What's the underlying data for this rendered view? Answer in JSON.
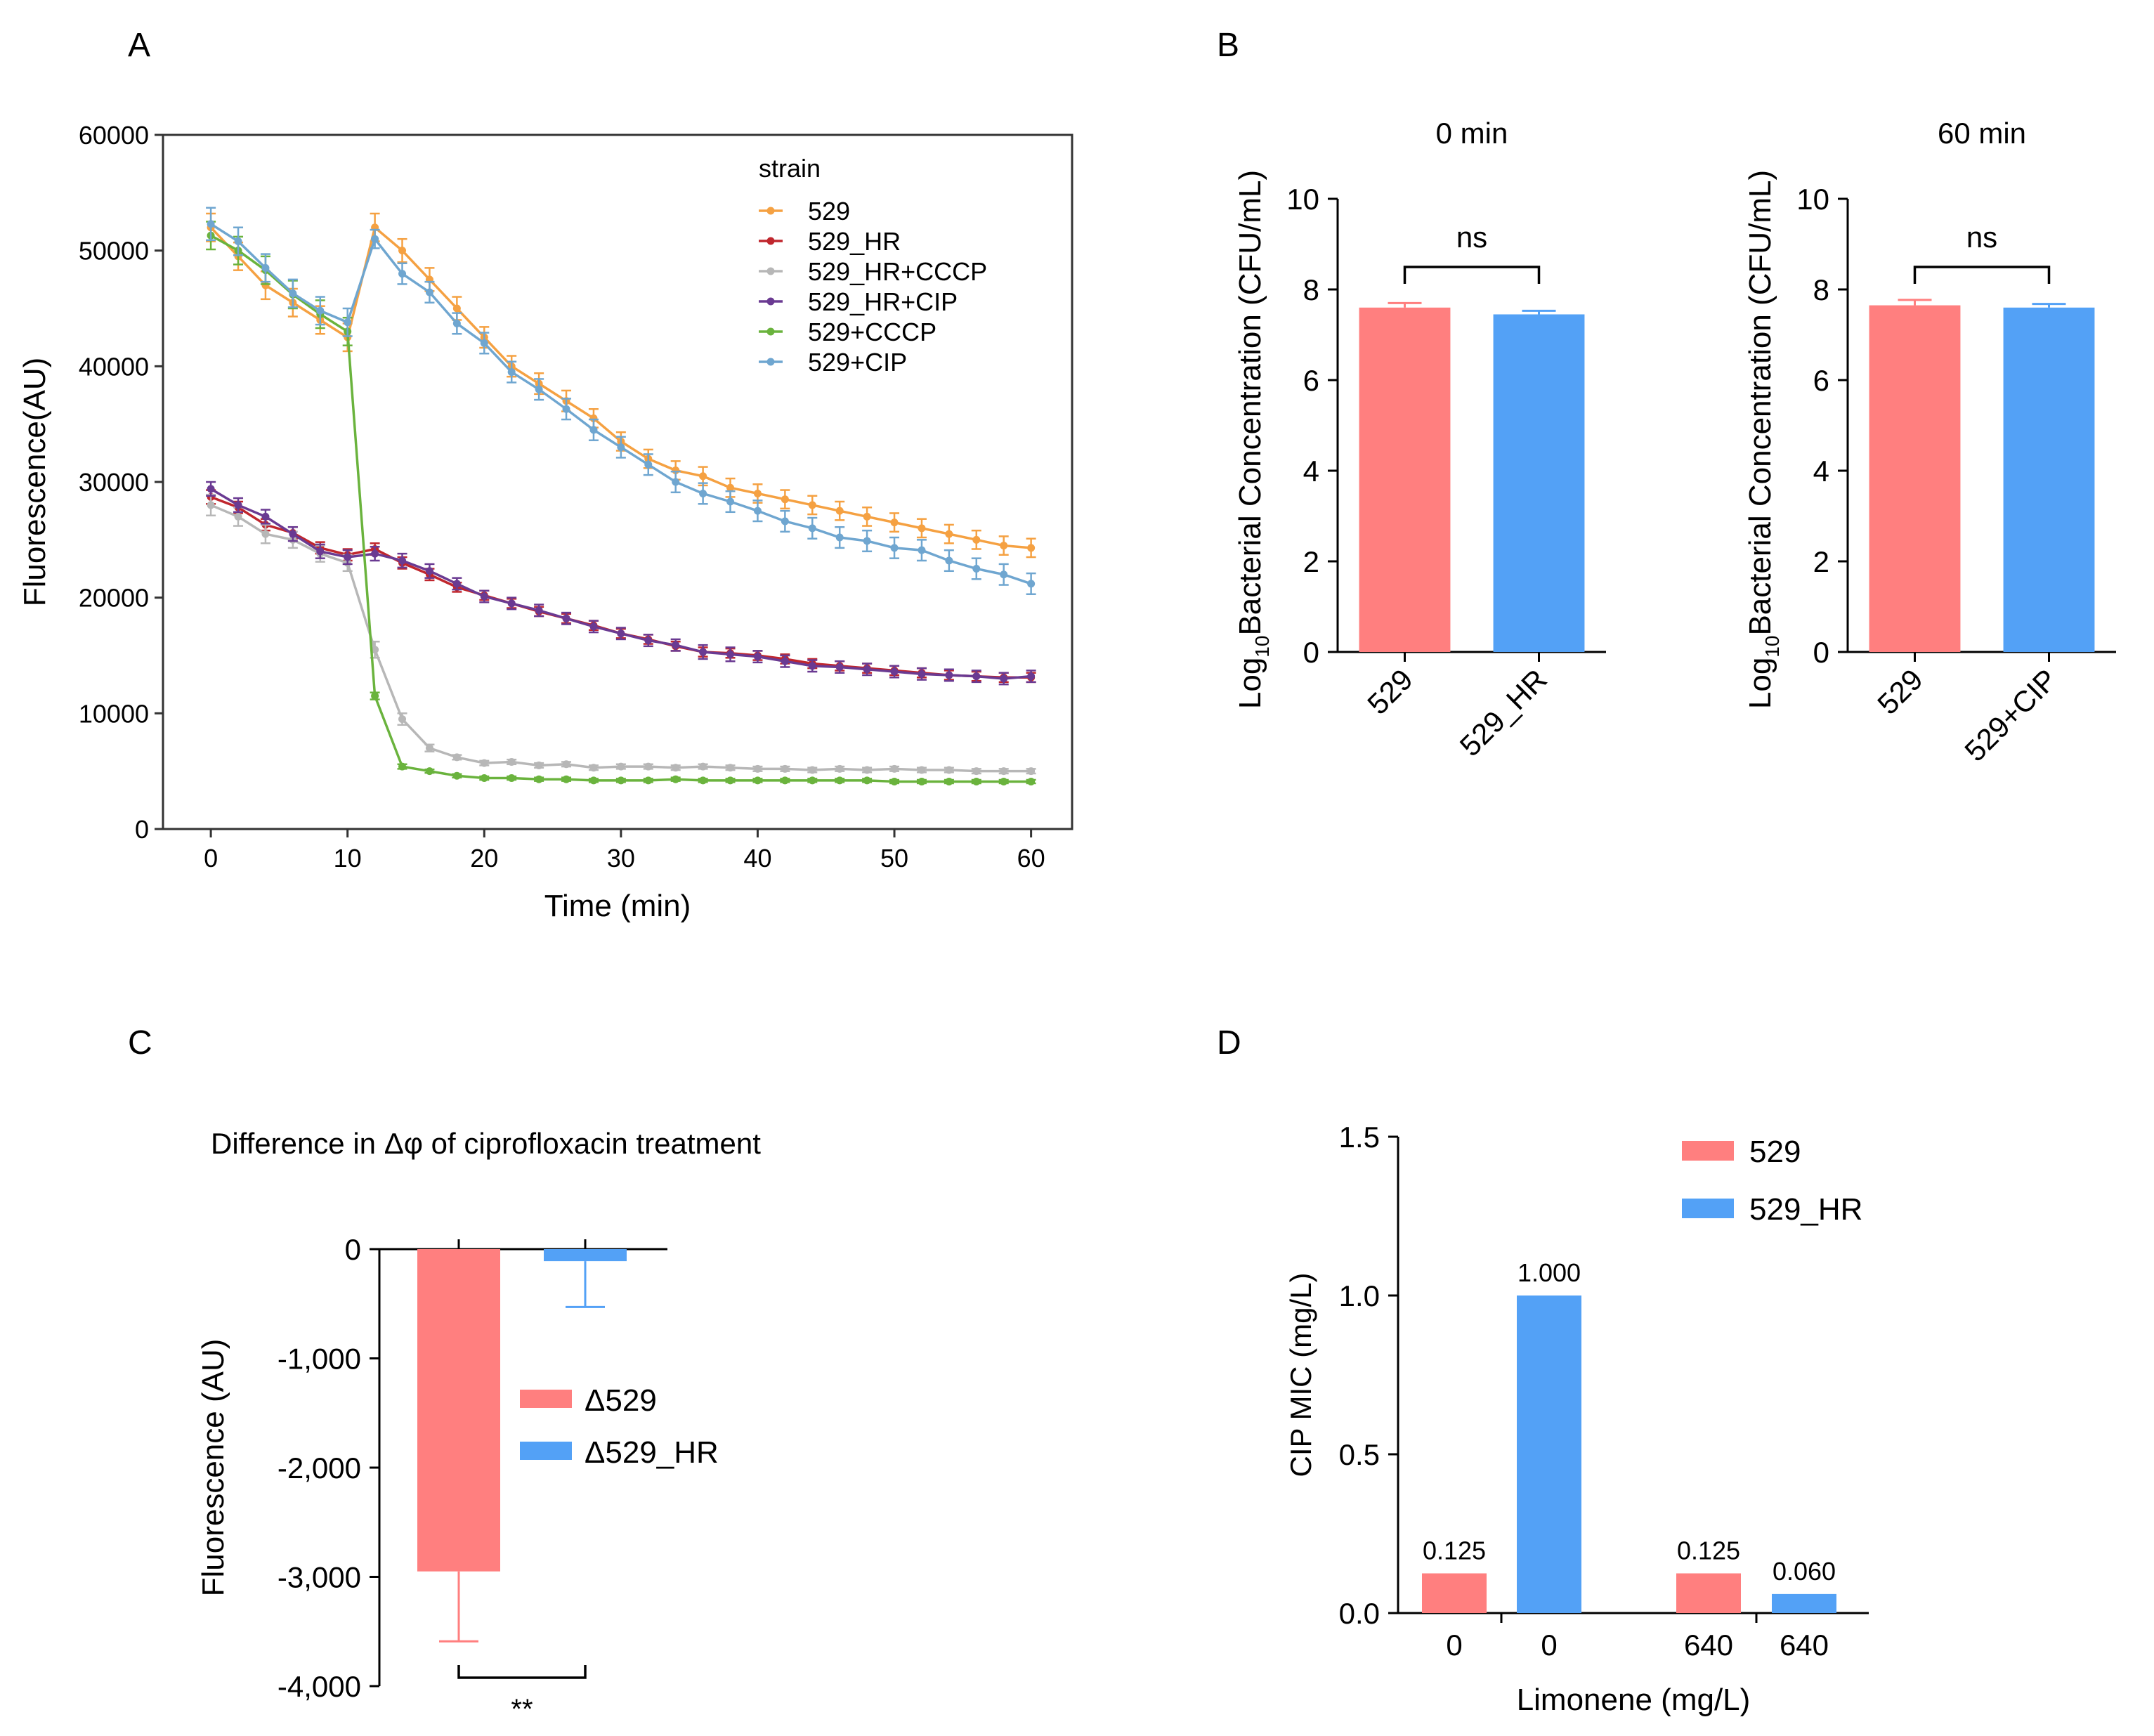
{
  "colors": {
    "s529": "#F5A142",
    "s529_HR": "#C0262D",
    "s529_HR_CCCP": "#B7B7B7",
    "s529_HR_CIP": "#6A3A92",
    "s529_CCCP": "#6AB33D",
    "s529_CIP": "#6FA6D0",
    "red_bar": "#FF7F7F",
    "blue_bar": "#53A1F6"
  },
  "chart_data": [
    {
      "panel": "A",
      "type": "line",
      "xlabel": "Time (min)",
      "ylabel": "Fluorescence(AU)",
      "xlim": [
        -3.5,
        63
      ],
      "ylim": [
        0,
        60000
      ],
      "xticks": [
        0,
        10,
        20,
        30,
        40,
        50,
        60
      ],
      "yticks": [
        0,
        10000,
        20000,
        30000,
        40000,
        50000,
        60000
      ],
      "legend_title": "strain",
      "legend_position": "top-right",
      "x": [
        0,
        2,
        4,
        6,
        8,
        10,
        12,
        14,
        16,
        18,
        20,
        22,
        24,
        26,
        28,
        30,
        32,
        34,
        36,
        38,
        40,
        42,
        44,
        46,
        48,
        50,
        52,
        54,
        56,
        58,
        60
      ],
      "series": [
        {
          "name": "529",
          "color_key": "s529",
          "values": [
            52000,
            49500,
            47000,
            45500,
            44000,
            42500,
            52000,
            50000,
            47500,
            45000,
            42500,
            40000,
            38500,
            37000,
            35500,
            33500,
            32000,
            31000,
            30500,
            29500,
            29000,
            28500,
            28000,
            27500,
            27000,
            26500,
            26000,
            25500,
            25000,
            24500,
            24300
          ],
          "error": [
            1200,
            1200,
            1200,
            1200,
            1200,
            1200,
            1200,
            1000,
            1000,
            1000,
            900,
            900,
            900,
            900,
            800,
            800,
            800,
            800,
            800,
            800,
            800,
            800,
            800,
            800,
            800,
            800,
            800,
            800,
            800,
            800,
            800
          ]
        },
        {
          "name": "529_HR",
          "color_key": "s529_HR",
          "values": [
            28700,
            27800,
            26300,
            25600,
            24300,
            23700,
            24200,
            23000,
            22000,
            20900,
            20200,
            19500,
            18800,
            18200,
            17600,
            16900,
            16400,
            15800,
            15300,
            15200,
            15000,
            14700,
            14300,
            14100,
            13900,
            13700,
            13500,
            13300,
            13200,
            13100,
            13100
          ],
          "error": [
            600,
            500,
            500,
            500,
            500,
            500,
            500,
            500,
            500,
            400,
            400,
            400,
            400,
            400,
            400,
            400,
            400,
            400,
            400,
            400,
            400,
            400,
            400,
            400,
            400,
            400,
            400,
            400,
            400,
            400,
            400
          ]
        },
        {
          "name": "529_HR+CCCP",
          "color_key": "s529_HR_CCCP",
          "values": [
            28000,
            27000,
            25500,
            25000,
            23800,
            23000,
            15500,
            9500,
            7000,
            6200,
            5700,
            5800,
            5500,
            5600,
            5300,
            5400,
            5400,
            5300,
            5400,
            5300,
            5200,
            5200,
            5100,
            5200,
            5100,
            5200,
            5100,
            5100,
            5000,
            5000,
            5000
          ],
          "error": [
            900,
            800,
            800,
            700,
            700,
            700,
            700,
            500,
            300,
            200,
            200,
            200,
            200,
            200,
            200,
            200,
            200,
            200,
            200,
            200,
            200,
            200,
            200,
            200,
            200,
            200,
            200,
            200,
            200,
            200,
            200
          ]
        },
        {
          "name": "529_HR+CIP",
          "color_key": "s529_HR_CIP",
          "values": [
            29400,
            28000,
            27000,
            25500,
            24000,
            23500,
            23800,
            23200,
            22300,
            21200,
            20100,
            19500,
            18900,
            18200,
            17500,
            16900,
            16300,
            15900,
            15300,
            15100,
            14900,
            14500,
            14100,
            14000,
            13800,
            13600,
            13400,
            13300,
            13200,
            13000,
            13200
          ],
          "error": [
            600,
            600,
            600,
            600,
            600,
            600,
            600,
            600,
            600,
            500,
            500,
            500,
            500,
            500,
            500,
            500,
            500,
            500,
            600,
            600,
            500,
            500,
            500,
            500,
            500,
            500,
            500,
            500,
            500,
            500,
            500
          ]
        },
        {
          "name": "529+CCCP",
          "color_key": "s529_CCCP",
          "values": [
            51300,
            50000,
            48300,
            46200,
            44500,
            43000,
            11500,
            5400,
            5000,
            4600,
            4400,
            4400,
            4300,
            4300,
            4200,
            4200,
            4200,
            4300,
            4200,
            4200,
            4200,
            4200,
            4200,
            4200,
            4200,
            4100,
            4100,
            4100,
            4100,
            4100,
            4100
          ],
          "error": [
            1200,
            1200,
            1200,
            1200,
            1200,
            1200,
            300,
            200,
            150,
            150,
            150,
            150,
            150,
            150,
            150,
            150,
            150,
            150,
            150,
            150,
            150,
            150,
            150,
            150,
            150,
            150,
            150,
            150,
            150,
            150,
            150
          ]
        },
        {
          "name": "529+CIP",
          "color_key": "s529_CIP",
          "values": [
            52300,
            50800,
            48500,
            46300,
            44800,
            43800,
            51000,
            48000,
            46400,
            43700,
            42000,
            39500,
            38000,
            36300,
            34500,
            33000,
            31500,
            30000,
            29000,
            28300,
            27500,
            26600,
            26000,
            25200,
            24900,
            24300,
            24100,
            23200,
            22500,
            22000,
            21200
          ],
          "error": [
            1400,
            1200,
            1200,
            1200,
            1200,
            1200,
            800,
            900,
            900,
            900,
            900,
            900,
            900,
            900,
            900,
            900,
            900,
            900,
            900,
            900,
            900,
            900,
            900,
            900,
            900,
            900,
            900,
            900,
            900,
            900,
            900
          ]
        }
      ]
    },
    {
      "panel": "B-left",
      "type": "bar",
      "title": "0 min",
      "ylabel_prefix": "Log",
      "ylabel_sub": "10",
      "ylabel_rest": "Bacterial Concentration (CFU/mL)",
      "categories": [
        "529",
        "529_HR"
      ],
      "values": [
        7.6,
        7.45
      ],
      "errors": [
        0.1,
        0.08
      ],
      "color_keys": [
        "red_bar",
        "blue_bar"
      ],
      "ylim": [
        0,
        10
      ],
      "yticks": [
        0,
        2,
        4,
        6,
        8,
        10
      ],
      "significance": "ns"
    },
    {
      "panel": "B-right",
      "type": "bar",
      "title": "60 min",
      "ylabel_prefix": "Log",
      "ylabel_sub": "10",
      "ylabel_rest": "Bacterial Concentration (CFU/mL)",
      "categories": [
        "529",
        "529+CIP"
      ],
      "values": [
        7.65,
        7.6
      ],
      "errors": [
        0.12,
        0.08
      ],
      "color_keys": [
        "red_bar",
        "blue_bar"
      ],
      "ylim": [
        0,
        10
      ],
      "yticks": [
        0,
        2,
        4,
        6,
        8,
        10
      ],
      "significance": "ns"
    },
    {
      "panel": "C",
      "type": "bar",
      "title": "Difference in Δφ of ciprofloxacin treatment",
      "ylabel": "Fluorescence (AU)",
      "categories": [
        "Δ529",
        "Δ529_HR"
      ],
      "values": [
        -2950,
        -110
      ],
      "errors": [
        640,
        420
      ],
      "color_keys": [
        "red_bar",
        "blue_bar"
      ],
      "ylim": [
        -4000,
        0
      ],
      "yticks": [
        0,
        -1000,
        -2000,
        -3000,
        -4000
      ],
      "ytick_labels": [
        "0",
        "-1,000",
        "-2,000",
        "-3,000",
        "-4,000"
      ],
      "legend": [
        "Δ529",
        "Δ529_HR"
      ],
      "legend_position": "center-right",
      "significance": "**"
    },
    {
      "panel": "D",
      "type": "bar",
      "xlabel": "Limonene (mg/L)",
      "ylabel": "CIP MIC (mg/L)",
      "categories": [
        "0",
        "0",
        "640",
        "640"
      ],
      "values": [
        0.125,
        1.0,
        0.125,
        0.06
      ],
      "value_labels": [
        "0.125",
        "1.000",
        "0.125",
        "0.060"
      ],
      "color_keys": [
        "red_bar",
        "blue_bar",
        "red_bar",
        "blue_bar"
      ],
      "ylim": [
        0,
        1.5
      ],
      "yticks": [
        0.0,
        0.5,
        1.0,
        1.5
      ],
      "ytick_labels": [
        "0.0",
        "0.5",
        "1.0",
        "1.5"
      ],
      "legend": [
        "529",
        "529_HR"
      ],
      "legend_position": "top-right"
    }
  ],
  "panel_labels": {
    "a": "A",
    "b": "B",
    "c": "C",
    "d": "D"
  }
}
